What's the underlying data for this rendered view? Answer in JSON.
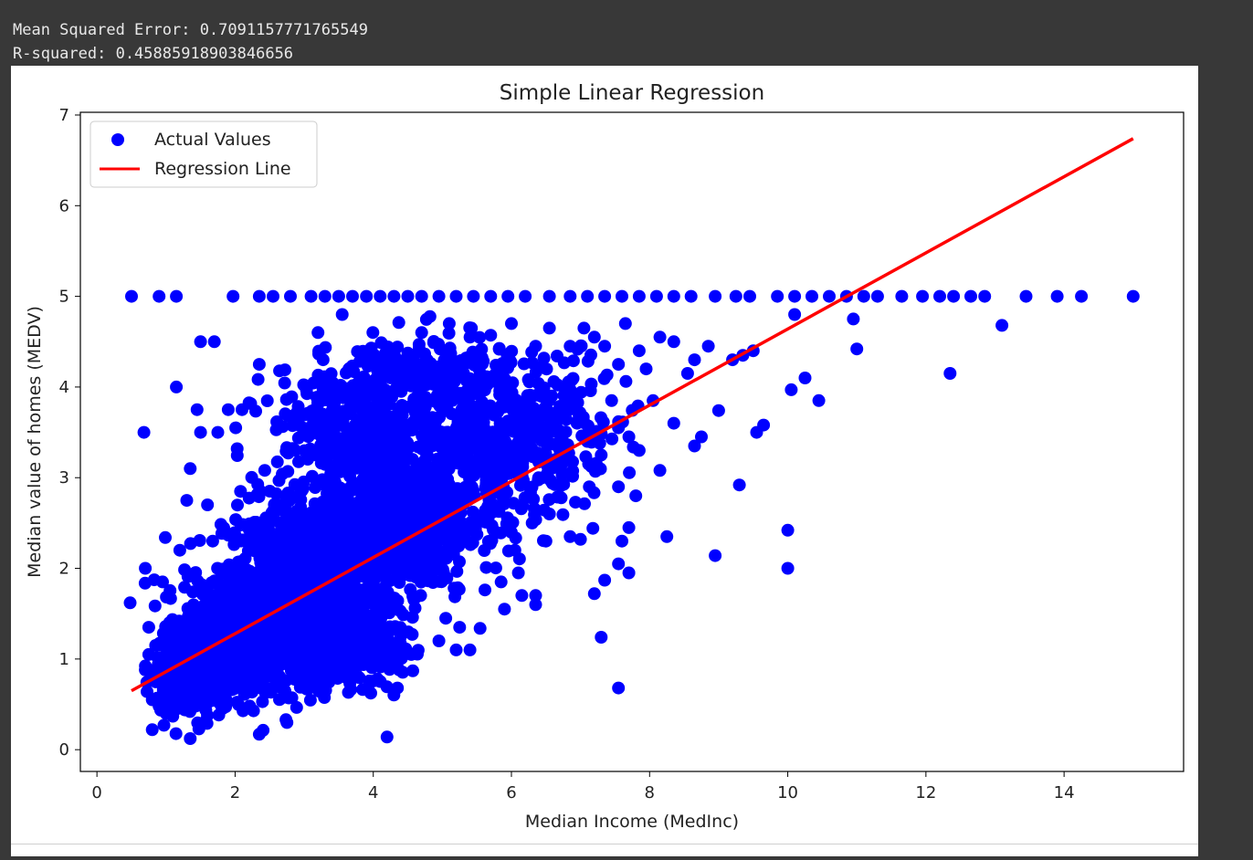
{
  "console_output": {
    "mse_line": "Mean Squared Error: 0.7091157771765549",
    "r2_line": "R-squared: 0.45885918903846656"
  },
  "chart_data": {
    "type": "scatter",
    "title": "Simple Linear Regression",
    "xlabel": "Median Income (MedInc)",
    "ylabel": "Median value of homes (MEDV)",
    "xlim": [
      -0.24,
      15.73
    ],
    "ylim": [
      -0.24,
      7.03
    ],
    "x_ticks": [
      0,
      2,
      4,
      6,
      8,
      10,
      12,
      14
    ],
    "y_ticks": [
      0,
      1,
      2,
      3,
      4,
      5,
      6,
      7
    ],
    "grid": false,
    "legend": {
      "position": "upper-left",
      "entries": [
        {
          "label": "Actual Values",
          "marker": "dot",
          "color": "#0000ff"
        },
        {
          "label": "Regression Line",
          "marker": "line",
          "color": "#ff0000"
        }
      ]
    },
    "colors": {
      "points": "#0000ff",
      "line": "#ff0000"
    },
    "series": [
      {
        "name": "Actual Values",
        "kind": "scatter",
        "points": [
          [
            0.5,
            5.0
          ],
          [
            0.9,
            5.0
          ],
          [
            1.15,
            5.0
          ],
          [
            1.97,
            5.0
          ],
          [
            2.35,
            5.0
          ],
          [
            2.55,
            5.0
          ],
          [
            2.8,
            5.0
          ],
          [
            3.1,
            5.0
          ],
          [
            3.3,
            5.0
          ],
          [
            3.5,
            5.0
          ],
          [
            3.7,
            5.0
          ],
          [
            3.9,
            5.0
          ],
          [
            4.1,
            5.0
          ],
          [
            4.3,
            5.0
          ],
          [
            4.5,
            5.0
          ],
          [
            4.7,
            5.0
          ],
          [
            4.95,
            5.0
          ],
          [
            5.2,
            5.0
          ],
          [
            5.45,
            5.0
          ],
          [
            5.7,
            5.0
          ],
          [
            5.95,
            5.0
          ],
          [
            6.2,
            5.0
          ],
          [
            6.55,
            5.0
          ],
          [
            6.85,
            5.0
          ],
          [
            7.1,
            5.0
          ],
          [
            7.35,
            5.0
          ],
          [
            7.6,
            5.0
          ],
          [
            7.85,
            5.0
          ],
          [
            8.1,
            5.0
          ],
          [
            8.35,
            5.0
          ],
          [
            8.6,
            5.0
          ],
          [
            8.95,
            5.0
          ],
          [
            9.25,
            5.0
          ],
          [
            9.45,
            5.0
          ],
          [
            9.85,
            5.0
          ],
          [
            10.1,
            5.0
          ],
          [
            10.35,
            5.0
          ],
          [
            10.6,
            5.0
          ],
          [
            10.85,
            5.0
          ],
          [
            11.1,
            5.0
          ],
          [
            11.3,
            5.0
          ],
          [
            11.65,
            5.0
          ],
          [
            11.95,
            5.0
          ],
          [
            12.2,
            5.0
          ],
          [
            12.4,
            5.0
          ],
          [
            12.65,
            5.0
          ],
          [
            12.85,
            5.0
          ],
          [
            13.45,
            5.0
          ],
          [
            13.9,
            5.0
          ],
          [
            14.25,
            5.0
          ],
          [
            15.0,
            5.0
          ],
          [
            0.48,
            1.62
          ],
          [
            0.68,
            3.5
          ],
          [
            0.7,
            2.0
          ],
          [
            0.8,
            0.22
          ],
          [
            1.15,
            4.0
          ],
          [
            1.45,
            3.75
          ],
          [
            1.5,
            4.5
          ],
          [
            1.7,
            4.5
          ],
          [
            1.75,
            3.5
          ],
          [
            1.9,
            3.75
          ],
          [
            2.1,
            3.75
          ],
          [
            2.35,
            4.25
          ],
          [
            2.35,
            0.17
          ],
          [
            2.75,
            0.3
          ],
          [
            3.2,
            4.6
          ],
          [
            3.55,
            4.8
          ],
          [
            4.2,
            0.14
          ],
          [
            4.35,
            0.68
          ],
          [
            4.7,
            4.6
          ],
          [
            5.1,
            4.7
          ],
          [
            5.4,
            4.55
          ],
          [
            5.8,
            4.15
          ],
          [
            6.0,
            4.7
          ],
          [
            6.35,
            4.45
          ],
          [
            6.55,
            4.65
          ],
          [
            6.85,
            4.45
          ],
          [
            7.05,
            4.65
          ],
          [
            7.2,
            4.55
          ],
          [
            7.35,
            4.45
          ],
          [
            7.55,
            4.25
          ],
          [
            7.65,
            4.7
          ],
          [
            7.85,
            4.4
          ],
          [
            7.95,
            4.2
          ],
          [
            8.15,
            4.55
          ],
          [
            8.35,
            4.5
          ],
          [
            8.55,
            4.15
          ],
          [
            8.65,
            4.3
          ],
          [
            8.85,
            4.45
          ],
          [
            9.2,
            4.3
          ],
          [
            9.35,
            4.35
          ],
          [
            9.5,
            4.4
          ],
          [
            10.1,
            4.8
          ],
          [
            10.95,
            4.75
          ],
          [
            11.0,
            4.42
          ],
          [
            12.35,
            4.15
          ],
          [
            13.1,
            4.68
          ],
          [
            10.05,
            3.97
          ],
          [
            10.25,
            4.1
          ],
          [
            10.45,
            3.85
          ],
          [
            9.55,
            3.5
          ],
          [
            9.65,
            3.58
          ],
          [
            9.0,
            3.74
          ],
          [
            8.75,
            3.45
          ],
          [
            8.65,
            3.35
          ],
          [
            8.35,
            3.6
          ],
          [
            8.05,
            3.85
          ],
          [
            7.85,
            3.3
          ],
          [
            7.7,
            3.45
          ],
          [
            7.55,
            3.55
          ],
          [
            7.45,
            3.85
          ],
          [
            7.3,
            3.25
          ],
          [
            7.1,
            3.4
          ],
          [
            6.95,
            3.6
          ],
          [
            8.15,
            3.08
          ],
          [
            7.55,
            2.9
          ],
          [
            7.8,
            2.8
          ],
          [
            7.7,
            2.45
          ],
          [
            7.6,
            2.3
          ],
          [
            7.55,
            2.05
          ],
          [
            7.7,
            1.95
          ],
          [
            8.25,
            2.35
          ],
          [
            9.3,
            2.92
          ],
          [
            8.95,
            2.14
          ],
          [
            10.0,
            2.42
          ],
          [
            10.0,
            2.0
          ],
          [
            7.35,
            1.87
          ],
          [
            7.2,
            1.72
          ],
          [
            7.3,
            1.24
          ],
          [
            7.55,
            0.68
          ],
          [
            6.85,
            2.35
          ],
          [
            7.0,
            2.32
          ],
          [
            6.55,
            2.6
          ],
          [
            6.5,
            2.3
          ],
          [
            6.3,
            2.5
          ],
          [
            6.05,
            2.2
          ],
          [
            6.1,
            1.95
          ],
          [
            5.85,
            1.85
          ],
          [
            5.9,
            1.55
          ],
          [
            6.15,
            1.7
          ],
          [
            6.35,
            1.7
          ],
          [
            6.35,
            1.6
          ],
          [
            5.4,
            1.1
          ],
          [
            5.2,
            1.1
          ],
          [
            5.25,
            1.35
          ],
          [
            5.05,
            1.45
          ],
          [
            4.55,
            1.05
          ],
          [
            4.95,
            1.2
          ],
          [
            0.95,
            1.85
          ],
          [
            1.3,
            2.75
          ],
          [
            1.35,
            3.1
          ],
          [
            1.5,
            3.5
          ],
          [
            1.6,
            2.7
          ],
          [
            1.2,
            2.2
          ],
          [
            1.05,
            1.4
          ],
          [
            0.75,
            1.35
          ],
          [
            0.85,
            1.15
          ],
          [
            0.7,
            0.88
          ],
          [
            0.75,
            1.05
          ],
          [
            0.8,
            0.55
          ],
          [
            0.9,
            0.48
          ],
          [
            1.0,
            0.4
          ]
        ],
        "dense_regions": [
          {
            "center": [
              3.0,
              1.8
            ],
            "spread": [
              1.05,
              0.85
            ],
            "count": 1300
          },
          {
            "center": [
              2.0,
              1.2
            ],
            "spread": [
              0.7,
              0.55
            ],
            "count": 700
          },
          {
            "center": [
              4.3,
              2.6
            ],
            "spread": [
              1.0,
              0.9
            ],
            "count": 700
          },
          {
            "center": [
              5.6,
              3.2
            ],
            "spread": [
              0.9,
              0.8
            ],
            "count": 350
          },
          {
            "center": [
              3.7,
              3.6
            ],
            "spread": [
              1.1,
              0.55
            ],
            "count": 300
          },
          {
            "center": [
              4.7,
              4.1
            ],
            "spread": [
              1.2,
              0.45
            ],
            "count": 200
          },
          {
            "center": [
              6.7,
              3.6
            ],
            "spread": [
              0.8,
              0.7
            ],
            "count": 160
          },
          {
            "center": [
              1.3,
              0.85
            ],
            "spread": [
              0.45,
              0.45
            ],
            "count": 250
          },
          {
            "center": [
              3.5,
              1.05
            ],
            "spread": [
              0.8,
              0.3
            ],
            "count": 260
          }
        ]
      },
      {
        "name": "Regression Line",
        "kind": "line",
        "points": [
          [
            0.5,
            0.65
          ],
          [
            15.0,
            6.74
          ]
        ]
      }
    ]
  }
}
